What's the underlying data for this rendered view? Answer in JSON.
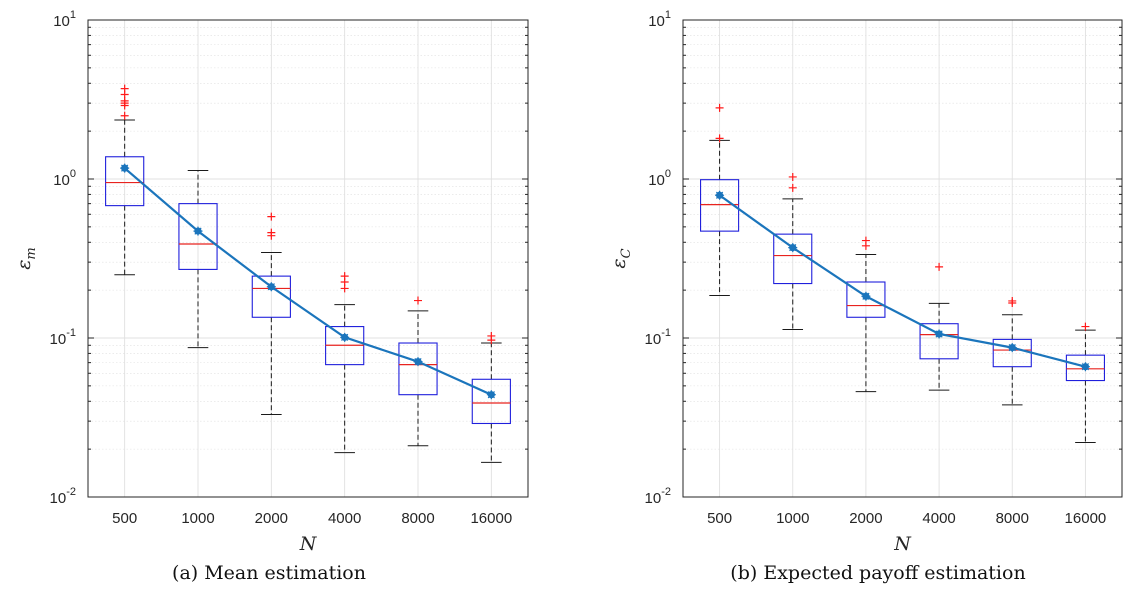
{
  "chart_data": [
    {
      "type": "box",
      "caption": "(a) Mean estimation",
      "xlabel": "N",
      "ylabel_main": "ε",
      "ylabel_sub": "m",
      "yscale": "log",
      "ylim": [
        0.01,
        10
      ],
      "categories": [
        "500",
        "1000",
        "2000",
        "4000",
        "8000",
        "16000"
      ],
      "ytick_labels": [
        {
          "base": "10",
          "exp": "-2"
        },
        {
          "base": "10",
          "exp": "-1"
        },
        {
          "base": "10",
          "exp": "0"
        },
        {
          "base": "10",
          "exp": "1"
        }
      ],
      "grid": true,
      "boxes": [
        {
          "whisker_low": 0.25,
          "q1": 0.68,
          "median": 0.95,
          "q3": 1.38,
          "whisker_high": 2.35,
          "outliers": [
            2.5,
            2.9,
            3.0,
            3.1,
            3.4,
            3.7
          ]
        },
        {
          "whisker_low": 0.087,
          "q1": 0.27,
          "median": 0.39,
          "q3": 0.7,
          "whisker_high": 1.13,
          "outliers": []
        },
        {
          "whisker_low": 0.033,
          "q1": 0.135,
          "median": 0.205,
          "q3": 0.245,
          "whisker_high": 0.345,
          "outliers": [
            0.44,
            0.46,
            0.58
          ]
        },
        {
          "whisker_low": 0.019,
          "q1": 0.068,
          "median": 0.09,
          "q3": 0.118,
          "whisker_high": 0.162,
          "outliers": [
            0.205,
            0.225,
            0.245
          ]
        },
        {
          "whisker_low": 0.021,
          "q1": 0.044,
          "median": 0.068,
          "q3": 0.093,
          "whisker_high": 0.148,
          "outliers": [
            0.172
          ]
        },
        {
          "whisker_low": 0.0165,
          "q1": 0.029,
          "median": 0.039,
          "q3": 0.055,
          "whisker_high": 0.093,
          "outliers": [
            0.097,
            0.103
          ]
        }
      ],
      "mean_line": [
        1.17,
        0.47,
        0.21,
        0.101,
        0.071,
        0.044
      ]
    },
    {
      "type": "box",
      "caption": "(b) Expected payoff estimation",
      "xlabel": "N",
      "ylabel_main": "ε",
      "ylabel_sub": "C",
      "yscale": "log",
      "ylim": [
        0.01,
        10
      ],
      "categories": [
        "500",
        "1000",
        "2000",
        "4000",
        "8000",
        "16000"
      ],
      "ytick_labels": [
        {
          "base": "10",
          "exp": "-2"
        },
        {
          "base": "10",
          "exp": "-1"
        },
        {
          "base": "10",
          "exp": "0"
        },
        {
          "base": "10",
          "exp": "1"
        }
      ],
      "grid": true,
      "boxes": [
        {
          "whisker_low": 0.185,
          "q1": 0.47,
          "median": 0.69,
          "q3": 0.99,
          "whisker_high": 1.75,
          "outliers": [
            1.8,
            2.8
          ]
        },
        {
          "whisker_low": 0.113,
          "q1": 0.22,
          "median": 0.33,
          "q3": 0.45,
          "whisker_high": 0.75,
          "outliers": [
            0.88,
            1.03
          ]
        },
        {
          "whisker_low": 0.046,
          "q1": 0.135,
          "median": 0.16,
          "q3": 0.225,
          "whisker_high": 0.335,
          "outliers": [
            0.38,
            0.41
          ]
        },
        {
          "whisker_low": 0.047,
          "q1": 0.074,
          "median": 0.105,
          "q3": 0.123,
          "whisker_high": 0.165,
          "outliers": [
            0.28
          ]
        },
        {
          "whisker_low": 0.038,
          "q1": 0.066,
          "median": 0.084,
          "q3": 0.098,
          "whisker_high": 0.14,
          "outliers": [
            0.166,
            0.171
          ]
        },
        {
          "whisker_low": 0.022,
          "q1": 0.054,
          "median": 0.064,
          "q3": 0.078,
          "whisker_high": 0.112,
          "outliers": [
            0.118
          ]
        }
      ],
      "mean_line": [
        0.79,
        0.37,
        0.183,
        0.106,
        0.087,
        0.066
      ]
    }
  ],
  "colors": {
    "box": "#1f1fdc",
    "median": "#e8231f",
    "whisker": "#1a1a1a",
    "outlier": "#ff1a1a",
    "mean_line": "#1b75bc",
    "grid": "#e0e0e0",
    "axes": "#262626"
  }
}
